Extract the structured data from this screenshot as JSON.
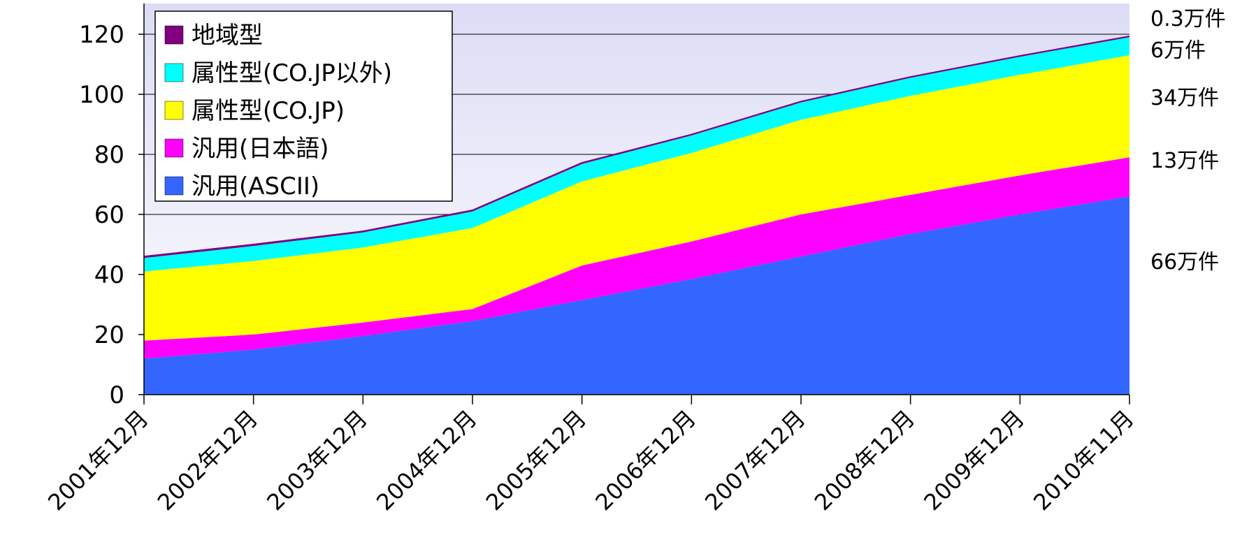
{
  "chart_data": {
    "type": "area",
    "stacked": true,
    "categories": [
      "2001年12月",
      "2002年12月",
      "2003年12月",
      "2004年12月",
      "2005年12月",
      "2006年12月",
      "2007年12月",
      "2008年12月",
      "2009年12月",
      "2010年11月"
    ],
    "ylim": [
      0,
      130
    ],
    "yticks": [
      0,
      20,
      40,
      60,
      80,
      100,
      120
    ],
    "grid": true,
    "legend_position": "top-left",
    "series": [
      {
        "name": "汎用(ASCII)",
        "color": "#3366ff",
        "values": [
          12,
          15,
          19.5,
          24.5,
          31.5,
          38.5,
          46,
          53.5,
          60,
          66
        ]
      },
      {
        "name": "汎用(日本語)",
        "color": "#ff00ff",
        "values": [
          6,
          5,
          4.5,
          4,
          11.5,
          12.5,
          14,
          13,
          13,
          13
        ]
      },
      {
        "name": "属性型(CO.JP)",
        "color": "#ffff00",
        "values": [
          23,
          24.5,
          25,
          27,
          28,
          29.5,
          31.5,
          33,
          33.5,
          34
        ]
      },
      {
        "name": "属性型(CO.JP以外)",
        "color": "#00ffff",
        "values": [
          4.5,
          5,
          5,
          5.5,
          5.8,
          5.8,
          5.8,
          6,
          6,
          6
        ]
      },
      {
        "name": "地域型",
        "color": "#800080",
        "values": [
          0.5,
          0.5,
          0.4,
          0.4,
          0.4,
          0.3,
          0.3,
          0.3,
          0.3,
          0.3
        ]
      }
    ],
    "end_labels": [
      "0.3万件",
      "6万件",
      "34万件",
      "13万件",
      "66万件"
    ]
  }
}
